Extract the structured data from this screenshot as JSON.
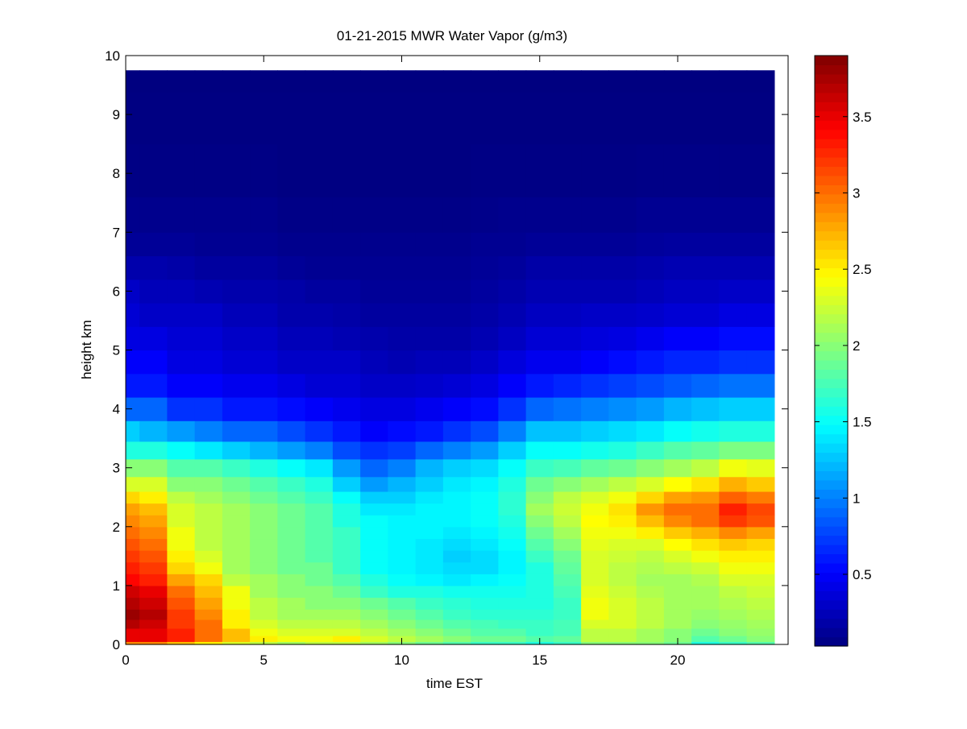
{
  "chart_data": {
    "type": "heatmap",
    "title": "01-21-2015 MWR Water Vapor (g/m3)",
    "xlabel": "time EST",
    "ylabel": "height km",
    "xlim": [
      0,
      24
    ],
    "ylim": [
      0,
      10
    ],
    "x_ticks": [
      0,
      5,
      10,
      15,
      20
    ],
    "y_ticks": [
      0,
      1,
      2,
      3,
      4,
      5,
      6,
      7,
      8,
      9,
      10
    ],
    "colorbar": {
      "colormap": "jet",
      "range": [
        0.03,
        3.9
      ],
      "ticks": [
        0.5,
        1,
        1.5,
        2,
        2.5,
        3,
        3.5
      ]
    },
    "grid": false,
    "time_hours": [
      0,
      1,
      2,
      3,
      4,
      5,
      6,
      7,
      8,
      9,
      10,
      11,
      12,
      13,
      14,
      15,
      16,
      17,
      18,
      19,
      20,
      21,
      22,
      23
    ],
    "height_km": [
      0.0,
      0.1,
      0.2,
      0.35,
      0.5,
      0.7,
      0.9,
      1.1,
      1.3,
      1.5,
      1.7,
      1.9,
      2.1,
      2.3,
      2.5,
      2.7,
      3.0,
      3.3,
      3.6,
      4.0,
      4.4,
      4.8,
      5.2,
      5.6,
      6.0,
      6.4,
      6.8,
      7.2,
      8.0,
      9.0,
      9.75
    ],
    "profiles": [
      [
        2.9,
        3.5,
        3.5,
        3.7,
        3.8,
        3.7,
        3.6,
        3.4,
        3.3,
        3.2,
        3.1,
        3.0,
        2.9,
        2.8,
        2.6,
        2.3,
        2.0,
        1.6,
        1.3,
        0.9,
        0.6,
        0.5,
        0.4,
        0.35,
        0.3,
        0.2,
        0.12,
        0.08,
        0.05,
        0.04,
        0.03
      ],
      [
        2.9,
        3.5,
        3.5,
        3.6,
        3.7,
        3.6,
        3.5,
        3.3,
        3.2,
        3.1,
        3.0,
        2.9,
        2.8,
        2.7,
        2.5,
        2.3,
        2.0,
        1.6,
        1.2,
        0.9,
        0.6,
        0.5,
        0.4,
        0.3,
        0.25,
        0.2,
        0.12,
        0.08,
        0.05,
        0.04,
        0.03
      ],
      [
        2.7,
        3.3,
        3.3,
        3.2,
        3.2,
        3.1,
        3.0,
        2.8,
        2.6,
        2.5,
        2.4,
        2.4,
        2.3,
        2.3,
        2.2,
        2.0,
        1.8,
        1.5,
        1.1,
        0.7,
        0.5,
        0.4,
        0.35,
        0.3,
        0.25,
        0.18,
        0.12,
        0.08,
        0.05,
        0.04,
        0.03
      ],
      [
        2.5,
        3.0,
        3.0,
        3.0,
        2.9,
        2.8,
        2.7,
        2.6,
        2.4,
        2.3,
        2.2,
        2.2,
        2.2,
        2.2,
        2.1,
        2.0,
        1.8,
        1.4,
        1.0,
        0.7,
        0.5,
        0.4,
        0.35,
        0.3,
        0.22,
        0.15,
        0.1,
        0.08,
        0.05,
        0.04,
        0.03
      ],
      [
        2.3,
        2.7,
        2.7,
        2.5,
        2.5,
        2.4,
        2.4,
        2.2,
        2.1,
        2.1,
        2.1,
        2.1,
        2.1,
        2.1,
        2.0,
        1.9,
        1.7,
        1.3,
        0.9,
        0.6,
        0.45,
        0.35,
        0.3,
        0.25,
        0.2,
        0.15,
        0.1,
        0.08,
        0.05,
        0.04,
        0.03
      ],
      [
        2.2,
        2.5,
        2.4,
        2.3,
        2.2,
        2.2,
        2.1,
        2.1,
        2.0,
        2.0,
        2.0,
        2.0,
        2.0,
        2.0,
        1.9,
        1.8,
        1.6,
        1.2,
        0.9,
        0.6,
        0.45,
        0.35,
        0.3,
        0.25,
        0.2,
        0.15,
        0.1,
        0.08,
        0.05,
        0.04,
        0.03
      ],
      [
        2.1,
        2.4,
        2.3,
        2.2,
        2.1,
        2.1,
        2.0,
        2.0,
        1.9,
        1.9,
        1.9,
        1.9,
        1.9,
        1.9,
        1.8,
        1.7,
        1.5,
        1.1,
        0.8,
        0.55,
        0.4,
        0.3,
        0.25,
        0.2,
        0.18,
        0.12,
        0.08,
        0.06,
        0.04,
        0.04,
        0.03
      ],
      [
        2.2,
        2.4,
        2.3,
        2.2,
        2.1,
        2.0,
        2.0,
        1.9,
        1.9,
        1.8,
        1.8,
        1.8,
        1.8,
        1.8,
        1.7,
        1.6,
        1.4,
        1.0,
        0.7,
        0.5,
        0.35,
        0.3,
        0.25,
        0.2,
        0.15,
        0.1,
        0.08,
        0.06,
        0.04,
        0.04,
        0.03
      ],
      [
        2.2,
        2.5,
        2.3,
        2.2,
        2.1,
        2.0,
        1.9,
        1.8,
        1.7,
        1.7,
        1.7,
        1.7,
        1.6,
        1.6,
        1.5,
        1.3,
        1.1,
        0.8,
        0.6,
        0.45,
        0.35,
        0.3,
        0.22,
        0.18,
        0.15,
        0.1,
        0.08,
        0.06,
        0.04,
        0.04,
        0.03
      ],
      [
        2.1,
        2.3,
        2.2,
        2.1,
        2.0,
        1.9,
        1.7,
        1.6,
        1.5,
        1.5,
        1.5,
        1.5,
        1.5,
        1.4,
        1.3,
        1.1,
        0.9,
        0.7,
        0.5,
        0.4,
        0.3,
        0.25,
        0.2,
        0.15,
        0.12,
        0.1,
        0.08,
        0.06,
        0.04,
        0.04,
        0.03
      ],
      [
        2.0,
        2.2,
        2.1,
        2.0,
        1.9,
        1.8,
        1.6,
        1.5,
        1.45,
        1.45,
        1.45,
        1.45,
        1.45,
        1.4,
        1.3,
        1.2,
        1.0,
        0.75,
        0.55,
        0.4,
        0.3,
        0.22,
        0.18,
        0.15,
        0.12,
        0.1,
        0.08,
        0.06,
        0.04,
        0.04,
        0.03
      ],
      [
        1.9,
        2.1,
        2.0,
        1.9,
        1.8,
        1.7,
        1.6,
        1.45,
        1.4,
        1.4,
        1.4,
        1.45,
        1.45,
        1.45,
        1.4,
        1.3,
        1.2,
        0.9,
        0.6,
        0.45,
        0.32,
        0.25,
        0.18,
        0.15,
        0.12,
        0.1,
        0.08,
        0.06,
        0.04,
        0.04,
        0.03
      ],
      [
        1.8,
        2.0,
        1.9,
        1.8,
        1.7,
        1.65,
        1.55,
        1.4,
        1.35,
        1.3,
        1.35,
        1.4,
        1.45,
        1.45,
        1.45,
        1.4,
        1.3,
        1.0,
        0.7,
        0.5,
        0.35,
        0.25,
        0.18,
        0.15,
        0.12,
        0.1,
        0.08,
        0.06,
        0.04,
        0.04,
        0.03
      ],
      [
        1.7,
        1.9,
        1.8,
        1.75,
        1.65,
        1.6,
        1.55,
        1.45,
        1.35,
        1.35,
        1.4,
        1.45,
        1.5,
        1.5,
        1.5,
        1.45,
        1.35,
        1.1,
        0.8,
        0.55,
        0.4,
        0.3,
        0.22,
        0.18,
        0.15,
        0.12,
        0.1,
        0.07,
        0.05,
        0.04,
        0.03
      ],
      [
        1.7,
        1.9,
        1.8,
        1.7,
        1.65,
        1.6,
        1.55,
        1.5,
        1.45,
        1.45,
        1.5,
        1.55,
        1.6,
        1.65,
        1.65,
        1.6,
        1.5,
        1.3,
        1.0,
        0.7,
        0.5,
        0.38,
        0.28,
        0.22,
        0.18,
        0.14,
        0.1,
        0.08,
        0.05,
        0.04,
        0.03
      ],
      [
        1.6,
        1.8,
        1.7,
        1.7,
        1.65,
        1.6,
        1.6,
        1.6,
        1.6,
        1.7,
        1.8,
        1.9,
        2.0,
        2.1,
        2.0,
        1.9,
        1.7,
        1.5,
        1.25,
        0.9,
        0.6,
        0.45,
        0.35,
        0.28,
        0.22,
        0.18,
        0.12,
        0.08,
        0.05,
        0.04,
        0.03
      ],
      [
        1.7,
        1.85,
        1.75,
        1.75,
        1.7,
        1.7,
        1.75,
        1.8,
        1.85,
        1.9,
        2.0,
        2.1,
        2.2,
        2.25,
        2.2,
        2.0,
        1.75,
        1.5,
        1.25,
        0.95,
        0.65,
        0.45,
        0.35,
        0.28,
        0.22,
        0.18,
        0.12,
        0.08,
        0.05,
        0.04,
        0.03
      ],
      [
        2.0,
        2.2,
        2.2,
        2.3,
        2.4,
        2.4,
        2.35,
        2.3,
        2.3,
        2.3,
        2.35,
        2.4,
        2.45,
        2.4,
        2.3,
        2.1,
        1.85,
        1.55,
        1.3,
        1.0,
        0.7,
        0.5,
        0.38,
        0.3,
        0.22,
        0.18,
        0.12,
        0.08,
        0.05,
        0.04,
        0.03
      ],
      [
        2.0,
        2.2,
        2.2,
        2.3,
        2.3,
        2.3,
        2.25,
        2.2,
        2.2,
        2.25,
        2.3,
        2.4,
        2.5,
        2.55,
        2.4,
        2.2,
        1.9,
        1.6,
        1.35,
        1.05,
        0.75,
        0.55,
        0.4,
        0.3,
        0.22,
        0.18,
        0.12,
        0.08,
        0.05,
        0.04,
        0.03
      ],
      [
        2.0,
        2.1,
        2.1,
        2.2,
        2.2,
        2.2,
        2.15,
        2.1,
        2.15,
        2.2,
        2.3,
        2.5,
        2.7,
        2.85,
        2.6,
        2.3,
        2.0,
        1.7,
        1.4,
        1.1,
        0.8,
        0.6,
        0.45,
        0.32,
        0.25,
        0.2,
        0.14,
        0.1,
        0.06,
        0.04,
        0.03
      ],
      [
        1.9,
        2.0,
        2.0,
        2.1,
        2.1,
        2.1,
        2.1,
        2.1,
        2.2,
        2.3,
        2.45,
        2.65,
        2.9,
        3.0,
        2.8,
        2.45,
        2.1,
        1.8,
        1.5,
        1.2,
        0.85,
        0.65,
        0.5,
        0.35,
        0.28,
        0.22,
        0.15,
        0.1,
        0.06,
        0.04,
        0.03
      ],
      [
        1.6,
        1.8,
        1.9,
        2.0,
        2.05,
        2.1,
        2.1,
        2.15,
        2.25,
        2.4,
        2.55,
        2.75,
        3.0,
        3.0,
        2.85,
        2.55,
        2.2,
        1.85,
        1.55,
        1.25,
        0.9,
        0.65,
        0.5,
        0.35,
        0.28,
        0.22,
        0.15,
        0.1,
        0.06,
        0.04,
        0.03
      ],
      [
        1.7,
        1.9,
        2.0,
        2.05,
        2.1,
        2.15,
        2.2,
        2.3,
        2.4,
        2.5,
        2.65,
        2.9,
        3.2,
        3.3,
        3.05,
        2.75,
        2.4,
        1.95,
        1.6,
        1.3,
        0.95,
        0.7,
        0.55,
        0.4,
        0.3,
        0.22,
        0.15,
        0.1,
        0.06,
        0.04,
        0.03
      ],
      [
        1.8,
        2.0,
        2.05,
        2.1,
        2.15,
        2.2,
        2.25,
        2.3,
        2.4,
        2.5,
        2.6,
        2.8,
        3.1,
        3.15,
        2.95,
        2.65,
        2.35,
        1.95,
        1.6,
        1.3,
        0.95,
        0.7,
        0.55,
        0.4,
        0.3,
        0.22,
        0.15,
        0.1,
        0.06,
        0.04,
        0.03
      ]
    ]
  }
}
